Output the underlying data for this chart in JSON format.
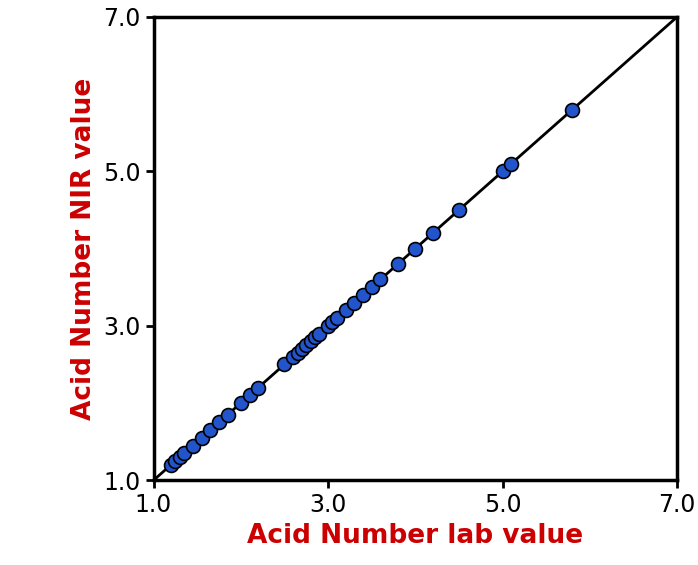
{
  "x_data": [
    1.2,
    1.25,
    1.3,
    1.35,
    1.45,
    1.55,
    1.65,
    1.75,
    1.85,
    2.0,
    2.1,
    2.2,
    2.5,
    2.6,
    2.65,
    2.7,
    2.75,
    2.8,
    2.85,
    2.9,
    3.0,
    3.05,
    3.1,
    3.2,
    3.3,
    3.4,
    3.5,
    3.6,
    3.8,
    4.0,
    4.2,
    4.5,
    5.0,
    5.1,
    5.8
  ],
  "y_data": [
    1.2,
    1.25,
    1.3,
    1.35,
    1.45,
    1.55,
    1.65,
    1.75,
    1.85,
    2.0,
    2.1,
    2.2,
    2.5,
    2.6,
    2.65,
    2.7,
    2.75,
    2.8,
    2.85,
    2.9,
    3.0,
    3.05,
    3.1,
    3.2,
    3.3,
    3.4,
    3.5,
    3.6,
    3.8,
    4.0,
    4.2,
    4.5,
    5.0,
    5.1,
    5.8
  ],
  "line_x": [
    1.0,
    7.0
  ],
  "line_y": [
    1.0,
    7.0
  ],
  "xlim": [
    1.0,
    7.0
  ],
  "ylim": [
    1.0,
    7.0
  ],
  "xticks": [
    1.0,
    3.0,
    5.0,
    7.0
  ],
  "yticks": [
    1.0,
    3.0,
    5.0,
    7.0
  ],
  "xlabel": "Acid Number lab value",
  "ylabel": "Acid Number NIR value",
  "label_color": "#cc0000",
  "marker_color": "#2255cc",
  "marker_edge_color": "#000000",
  "line_color": "#000000",
  "marker_size": 100,
  "marker_edge_width": 1.2,
  "line_width": 2.0,
  "tick_label_fontsize": 17,
  "axis_label_fontsize": 19,
  "background_color": "#ffffff",
  "spine_linewidth": 2.5
}
